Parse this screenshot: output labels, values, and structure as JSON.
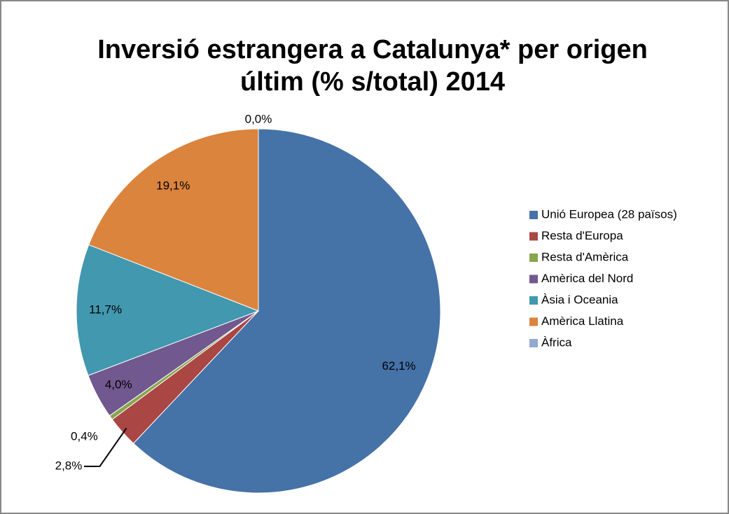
{
  "chart_data": {
    "type": "pie",
    "title": [
      "Inversió estrangera a Catalunya* per origen",
      "últim (% s/total) 2014"
    ],
    "categories": [
      "Unió Europea (28 països)",
      "Resta d'Europa",
      "Resta d'Amèrica",
      "Amèrica del Nord",
      "Àsia i Oceania",
      "Amèrica Llatina",
      "Àfrica"
    ],
    "values": [
      62.1,
      2.8,
      0.4,
      4.0,
      11.7,
      19.1,
      0.0
    ],
    "value_labels": [
      "62,1%",
      "2,8%",
      "0,4%",
      "4,0%",
      "11,7%",
      "19,1%",
      "0,0%"
    ],
    "colors": [
      "#4572a7",
      "#aa4643",
      "#89a54e",
      "#71588f",
      "#4198af",
      "#db843d",
      "#93a9cf"
    ],
    "legend": "right"
  }
}
